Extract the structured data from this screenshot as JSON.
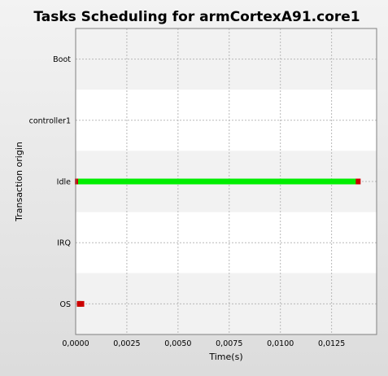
{
  "chart_data": {
    "type": "gantt",
    "title": "Tasks Scheduling for armCortexA91.core1",
    "xlabel": "Time(s)",
    "ylabel": "Transaction origin",
    "categories": [
      "Boot",
      "controller1",
      "Idle",
      "IRQ",
      "OS"
    ],
    "xlim": [
      0,
      0.0147
    ],
    "xticks": [
      0.0,
      0.0025,
      0.005,
      0.0075,
      0.01,
      0.0125
    ],
    "xtick_labels": [
      "0,0000",
      "0,0025",
      "0,0050",
      "0,0075",
      "0,0100",
      "0,0125"
    ],
    "grid": true,
    "legend": "none",
    "intervals": [
      {
        "category": "Idle",
        "start": 0.0,
        "end": 0.0138,
        "color": "#00ee00",
        "start_marker_color": "#cc0000",
        "end_marker_color": "#cc0000"
      },
      {
        "category": "OS",
        "start": 0.0001,
        "end": 0.0003,
        "color": "#00ee00",
        "start_marker_color": "#cc0000",
        "end_marker_color": "#cc0000"
      }
    ],
    "colors": {
      "band_alt": "#f2f2f2",
      "band_plain": "#ffffff",
      "grid": "#b8b8b8",
      "bar": "#00ee00",
      "marker": "#cc0000"
    }
  }
}
